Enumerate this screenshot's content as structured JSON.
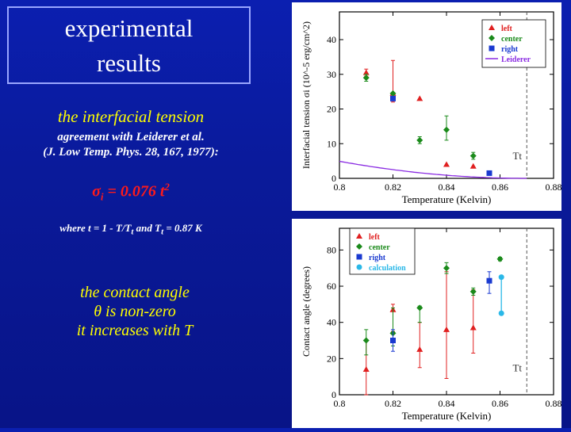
{
  "slide": {
    "title_line1": "experimental",
    "title_line2": "results",
    "subtitle1": "the interfacial tension",
    "subtitle2_line1": "agreement with Leiderer et al.",
    "subtitle2_line2": "(J. Low Temp. Phys. 28, 167, 1977):",
    "formula": "σi = 0.076 t2",
    "where_text": "where t = 1 - T/Tt and Tt = 0.87 K",
    "contact_line1": "the contact angle",
    "contact_line2": "θ is non-zero",
    "contact_line3": "it increases with T"
  },
  "chart_data": [
    {
      "type": "scatter",
      "title": "",
      "xlabel": "Temperature (Kelvin)",
      "ylabel": "Interfacial tension σi (10^-5 erg/cm^2)",
      "xlim": [
        0.8,
        0.88
      ],
      "ylim": [
        0,
        48
      ],
      "xticks": [
        "0.8",
        "0.82",
        "0.84",
        "0.86",
        "0.88"
      ],
      "yticks": [
        "0",
        "10",
        "20",
        "30",
        "40"
      ],
      "vline": {
        "x": 0.87,
        "label": "Tt"
      },
      "series": [
        {
          "name": "left",
          "marker": "triangle",
          "color": "#e02020",
          "points": [
            {
              "x": 0.81,
              "y": 30.5,
              "lo": 29.5,
              "hi": 31.5
            },
            {
              "x": 0.82,
              "y": 24.5,
              "lo": 22,
              "hi": 34
            },
            {
              "x": 0.83,
              "y": 23
            },
            {
              "x": 0.84,
              "y": 4
            },
            {
              "x": 0.85,
              "y": 3.5
            }
          ]
        },
        {
          "name": "center",
          "marker": "diamond",
          "color": "#1a8a1a",
          "points": [
            {
              "x": 0.81,
              "y": 29,
              "lo": 28,
              "hi": 30
            },
            {
              "x": 0.82,
              "y": 24.5
            },
            {
              "x": 0.83,
              "y": 11,
              "lo": 10,
              "hi": 12
            },
            {
              "x": 0.84,
              "y": 14,
              "lo": 11,
              "hi": 18
            },
            {
              "x": 0.85,
              "y": 6.5,
              "lo": 5.5,
              "hi": 7.5
            }
          ]
        },
        {
          "name": "right",
          "marker": "square",
          "color": "#1a3ad0",
          "points": [
            {
              "x": 0.82,
              "y": 23
            },
            {
              "x": 0.856,
              "y": 1.5
            }
          ]
        },
        {
          "name": "Leiderer",
          "marker": "line",
          "color": "#8a2be2",
          "curve": {
            "coef": 0.076,
            "Tt": 0.87
          }
        }
      ]
    },
    {
      "type": "scatter",
      "title": "",
      "xlabel": "Temperature (Kelvin)",
      "ylabel": "Contact angle (degrees)",
      "xlim": [
        0.8,
        0.88
      ],
      "ylim": [
        0,
        92
      ],
      "xticks": [
        "0.8",
        "0.82",
        "0.84",
        "0.86",
        "0.88"
      ],
      "yticks": [
        "0",
        "20",
        "40",
        "60",
        "80"
      ],
      "vline": {
        "x": 0.87,
        "label": "Tt"
      },
      "series": [
        {
          "name": "left",
          "marker": "triangle",
          "color": "#e02020",
          "points": [
            {
              "x": 0.81,
              "y": 14,
              "lo": 0,
              "hi": 30
            },
            {
              "x": 0.82,
              "y": 47,
              "lo": 35,
              "hi": 50
            },
            {
              "x": 0.83,
              "y": 25,
              "lo": 15,
              "hi": 40
            },
            {
              "x": 0.84,
              "y": 36,
              "lo": 9,
              "hi": 68
            },
            {
              "x": 0.85,
              "y": 37,
              "lo": 23,
              "hi": 58
            }
          ]
        },
        {
          "name": "center",
          "marker": "diamond",
          "color": "#1a8a1a",
          "points": [
            {
              "x": 0.81,
              "y": 30,
              "lo": 22,
              "hi": 36
            },
            {
              "x": 0.82,
              "y": 34,
              "lo": 27,
              "hi": 48
            },
            {
              "x": 0.83,
              "y": 48,
              "lo": 40,
              "hi": 49
            },
            {
              "x": 0.84,
              "y": 70,
              "lo": 67,
              "hi": 73
            },
            {
              "x": 0.85,
              "y": 57,
              "lo": 55,
              "hi": 59
            },
            {
              "x": 0.86,
              "y": 75,
              "lo": 74,
              "hi": 76
            }
          ]
        },
        {
          "name": "right",
          "marker": "square",
          "color": "#1a3ad0",
          "points": [
            {
              "x": 0.82,
              "y": 30,
              "lo": 24,
              "hi": 36
            },
            {
              "x": 0.856,
              "y": 63,
              "lo": 56,
              "hi": 68
            }
          ]
        },
        {
          "name": "calculation",
          "marker": "circle",
          "color": "#2ab8e8",
          "points": [
            {
              "x": 0.8605,
              "y": 65
            },
            {
              "x": 0.8605,
              "y": 45
            }
          ],
          "connect": true
        }
      ]
    }
  ],
  "colors": {
    "background": "#0a1a9a",
    "title_border": "#9aa6ff",
    "highlight_text": "#ffff00",
    "formula": "#ff1a1a"
  }
}
